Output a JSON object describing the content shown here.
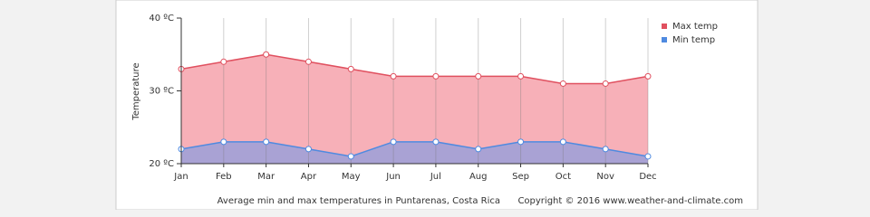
{
  "chart_data": {
    "type": "area",
    "y_label": "Temperature",
    "categories": [
      "Jan",
      "Feb",
      "Mar",
      "Apr",
      "May",
      "Jun",
      "Jul",
      "Aug",
      "Sep",
      "Oct",
      "Nov",
      "Dec"
    ],
    "series": [
      {
        "name": "Max temp",
        "color": "#e0505f",
        "fill": "#f7b0b8",
        "values": [
          33,
          34,
          35,
          34,
          33,
          32,
          32,
          32,
          32,
          31,
          31,
          32
        ]
      },
      {
        "name": "Min temp",
        "color": "#4f8ae0",
        "fill": "#a9a2d4",
        "values": [
          22,
          23,
          23,
          22,
          21,
          23,
          23,
          22,
          23,
          23,
          22,
          21
        ]
      }
    ],
    "ylim": [
      20,
      40
    ],
    "yticks": [
      {
        "value": 20,
        "label": "20 ºC"
      },
      {
        "value": 30,
        "label": "30 ºC"
      },
      {
        "value": 40,
        "label": "40 ºC"
      }
    ],
    "grid": true,
    "legend": "top-right",
    "caption": "Average min and max temperatures in Puntarenas, Costa Rica",
    "copyright": "Copyright © 2016 www.weather-and-climate.com"
  }
}
